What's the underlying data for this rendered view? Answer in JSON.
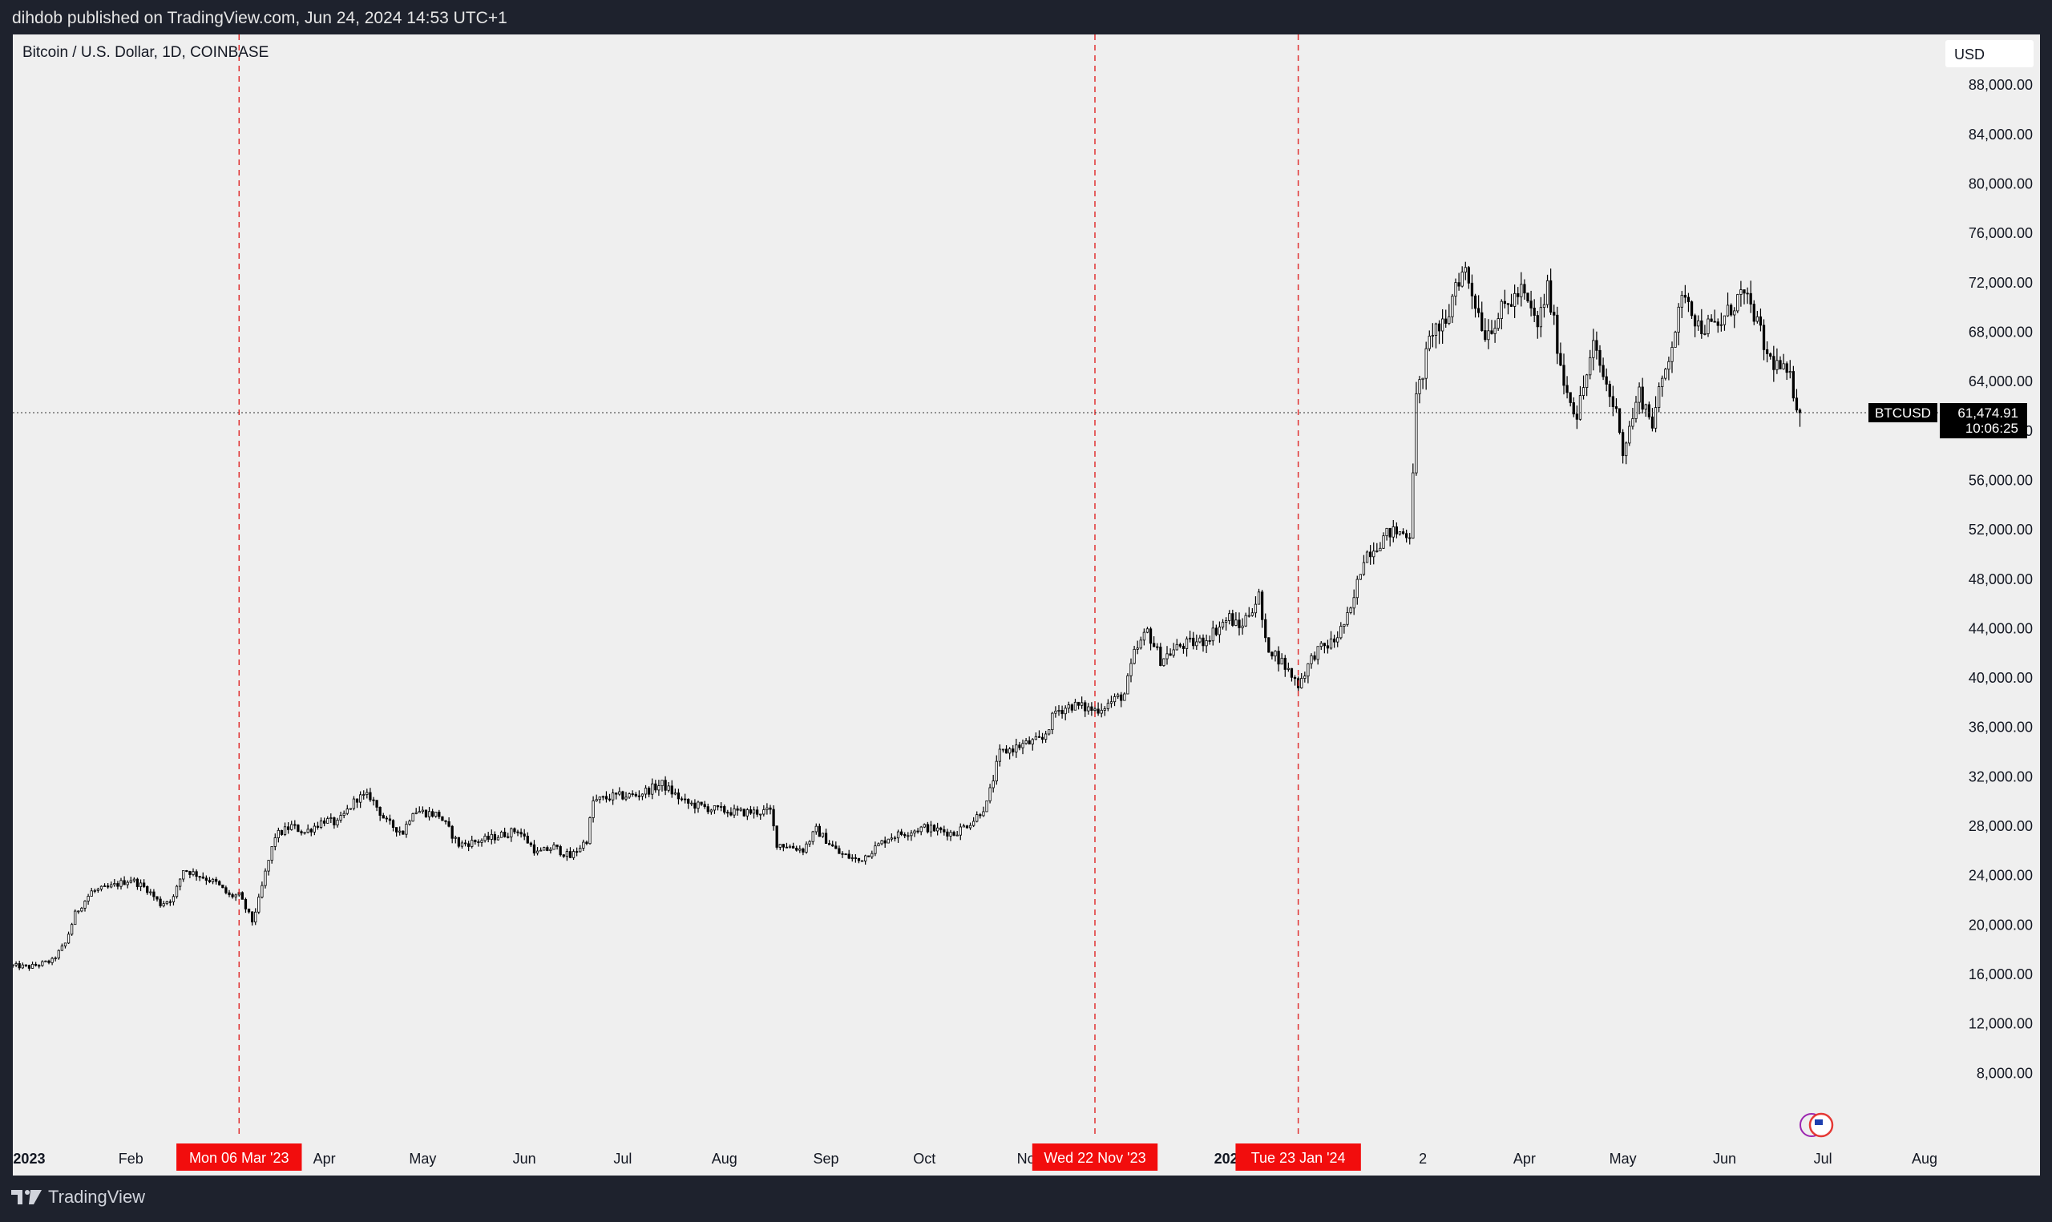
{
  "header": {
    "published": "dihdob published on TradingView.com, Jun 24, 2024 14:53 UTC+1"
  },
  "footer": {
    "brand": "TradingView"
  },
  "chart_data": {
    "type": "candlestick",
    "title": "Bitcoin / U.S. Dollar, 1D, COINBASE",
    "currency": "USD",
    "symbol": "BTCUSD",
    "last_price": "61,474.91",
    "countdown": "10:06:25",
    "last_value": 61474.91,
    "ylim": [
      4000,
      92000
    ],
    "y_ticks": [
      "88,000.00",
      "84,000.00",
      "80,000.00",
      "76,000.00",
      "72,000.00",
      "68,000.00",
      "64,000.00",
      "60,000.00",
      "56,000.00",
      "52,000.00",
      "48,000.00",
      "44,000.00",
      "40,000.00",
      "36,000.00",
      "32,000.00",
      "28,000.00",
      "24,000.00",
      "20,000.00",
      "16,000.00",
      "12,000.00",
      "8,000.00"
    ],
    "x_ticks": [
      {
        "label": "2023",
        "date": "2023-01-01",
        "bold": true
      },
      {
        "label": "Feb",
        "date": "2023-02-01"
      },
      {
        "label": "Apr",
        "date": "2023-04-01"
      },
      {
        "label": "May",
        "date": "2023-05-01"
      },
      {
        "label": "Jun",
        "date": "2023-06-01"
      },
      {
        "label": "Jul",
        "date": "2023-07-01"
      },
      {
        "label": "Aug",
        "date": "2023-08-01"
      },
      {
        "label": "Sep",
        "date": "2023-09-01"
      },
      {
        "label": "Oct",
        "date": "2023-10-01"
      },
      {
        "label": "No",
        "date": "2023-11-01"
      },
      {
        "label": "202",
        "date": "2024-01-01",
        "bold": true
      },
      {
        "label": "2",
        "date": "2024-03-01"
      },
      {
        "label": "Apr",
        "date": "2024-04-01"
      },
      {
        "label": "May",
        "date": "2024-05-01"
      },
      {
        "label": "Jun",
        "date": "2024-06-01"
      },
      {
        "label": "Jul",
        "date": "2024-07-01"
      },
      {
        "label": "Aug",
        "date": "2024-08-01"
      }
    ],
    "markers": [
      {
        "label": "Mon 06 Mar '23",
        "date": "2023-03-06"
      },
      {
        "label": "Wed 22 Nov '23",
        "date": "2023-11-22"
      },
      {
        "label": "Tue 23 Jan '24",
        "date": "2024-01-23"
      }
    ],
    "series": [
      {
        "points": [
          [
            "2022-12-27",
            16700
          ],
          [
            "2023-01-01",
            16600
          ],
          [
            "2023-01-08",
            17100
          ],
          [
            "2023-01-12",
            18500
          ],
          [
            "2023-01-15",
            20900
          ],
          [
            "2023-01-20",
            22700
          ],
          [
            "2023-01-25",
            23000
          ],
          [
            "2023-02-01",
            23700
          ],
          [
            "2023-02-06",
            22900
          ],
          [
            "2023-02-10",
            21700
          ],
          [
            "2023-02-14",
            22200
          ],
          [
            "2023-02-17",
            24500
          ],
          [
            "2023-02-22",
            24000
          ],
          [
            "2023-02-27",
            23400
          ],
          [
            "2023-03-03",
            22350
          ],
          [
            "2023-03-06",
            22400
          ],
          [
            "2023-03-10",
            20300
          ],
          [
            "2023-03-12",
            22000
          ],
          [
            "2023-03-14",
            24200
          ],
          [
            "2023-03-17",
            27200
          ],
          [
            "2023-03-22",
            28000
          ],
          [
            "2023-03-26",
            27500
          ],
          [
            "2023-04-01",
            28500
          ],
          [
            "2023-04-05",
            28200
          ],
          [
            "2023-04-11",
            30300
          ],
          [
            "2023-04-15",
            30400
          ],
          [
            "2023-04-20",
            28300
          ],
          [
            "2023-04-25",
            27500
          ],
          [
            "2023-04-28",
            29300
          ],
          [
            "2023-05-06",
            28900
          ],
          [
            "2023-05-12",
            26500
          ],
          [
            "2023-05-20",
            26900
          ],
          [
            "2023-05-30",
            27700
          ],
          [
            "2023-06-05",
            25800
          ],
          [
            "2023-06-10",
            26300
          ],
          [
            "2023-06-15",
            25500
          ],
          [
            "2023-06-20",
            26900
          ],
          [
            "2023-06-22",
            30000
          ],
          [
            "2023-06-28",
            30400
          ],
          [
            "2023-07-05",
            30500
          ],
          [
            "2023-07-13",
            31400
          ],
          [
            "2023-07-20",
            29900
          ],
          [
            "2023-07-28",
            29400
          ],
          [
            "2023-08-05",
            29100
          ],
          [
            "2023-08-15",
            29200
          ],
          [
            "2023-08-17",
            26600
          ],
          [
            "2023-08-25",
            26100
          ],
          [
            "2023-08-29",
            27700
          ],
          [
            "2023-09-05",
            25800
          ],
          [
            "2023-09-11",
            25200
          ],
          [
            "2023-09-20",
            27100
          ],
          [
            "2023-10-01",
            27900
          ],
          [
            "2023-10-10",
            27400
          ],
          [
            "2023-10-16",
            28500
          ],
          [
            "2023-10-20",
            29800
          ],
          [
            "2023-10-24",
            33900
          ],
          [
            "2023-10-31",
            34600
          ],
          [
            "2023-11-06",
            35000
          ],
          [
            "2023-11-10",
            37300
          ],
          [
            "2023-11-15",
            37800
          ],
          [
            "2023-11-22",
            37400
          ],
          [
            "2023-11-26",
            37900
          ],
          [
            "2023-12-01",
            38700
          ],
          [
            "2023-12-04",
            41900
          ],
          [
            "2023-12-08",
            43800
          ],
          [
            "2023-12-12",
            41500
          ],
          [
            "2023-12-18",
            42600
          ],
          [
            "2023-12-25",
            43000
          ],
          [
            "2024-01-02",
            44900
          ],
          [
            "2024-01-05",
            44000
          ],
          [
            "2024-01-11",
            46600
          ],
          [
            "2024-01-13",
            42800
          ],
          [
            "2024-01-18",
            41300
          ],
          [
            "2024-01-23",
            39500
          ],
          [
            "2024-01-28",
            42000
          ],
          [
            "2024-02-03",
            43000
          ],
          [
            "2024-02-08",
            45300
          ],
          [
            "2024-02-12",
            49900
          ],
          [
            "2024-02-20",
            51800
          ],
          [
            "2024-02-26",
            51700
          ],
          [
            "2024-02-28",
            62500
          ],
          [
            "2024-03-04",
            68300
          ],
          [
            "2024-03-08",
            68300
          ],
          [
            "2024-03-11",
            72100
          ],
          [
            "2024-03-14",
            73000
          ],
          [
            "2024-03-20",
            67900
          ],
          [
            "2024-03-26",
            70000
          ],
          [
            "2024-03-31",
            71300
          ],
          [
            "2024-04-05",
            68500
          ],
          [
            "2024-04-08",
            71600
          ],
          [
            "2024-04-13",
            64000
          ],
          [
            "2024-04-17",
            61300
          ],
          [
            "2024-04-22",
            66800
          ],
          [
            "2024-04-30",
            60600
          ],
          [
            "2024-05-01",
            58300
          ],
          [
            "2024-05-06",
            63100
          ],
          [
            "2024-05-10",
            60700
          ],
          [
            "2024-05-15",
            66200
          ],
          [
            "2024-05-20",
            71400
          ],
          [
            "2024-05-24",
            68500
          ],
          [
            "2024-05-30",
            68400
          ],
          [
            "2024-06-06",
            71100
          ],
          [
            "2024-06-10",
            69500
          ],
          [
            "2024-06-14",
            66000
          ],
          [
            "2024-06-18",
            65100
          ],
          [
            "2024-06-21",
            64100
          ],
          [
            "2024-06-24",
            61475
          ]
        ]
      }
    ]
  }
}
